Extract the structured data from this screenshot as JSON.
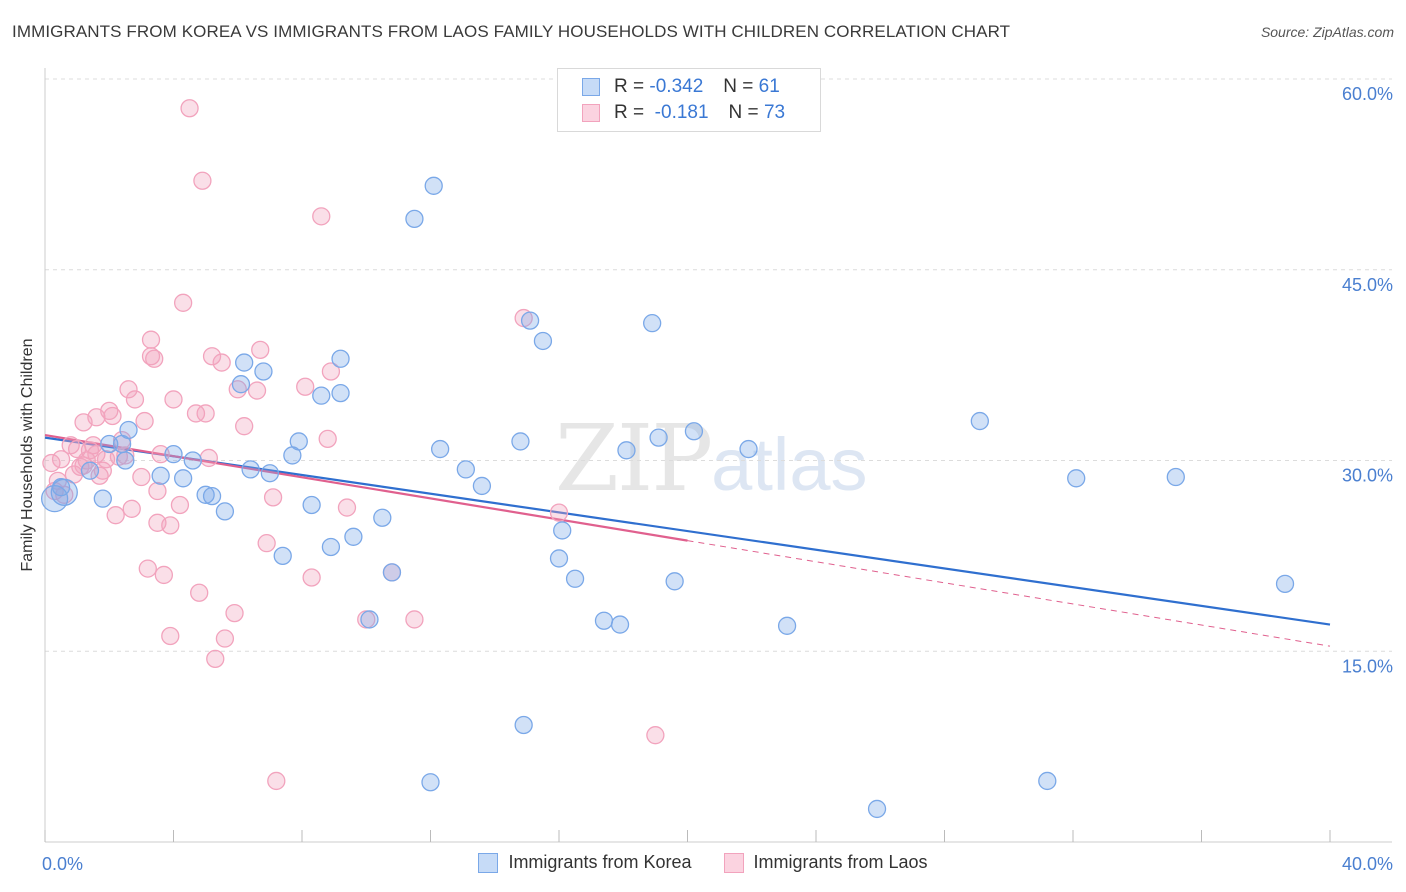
{
  "title": "IMMIGRANTS FROM KOREA VS IMMIGRANTS FROM LAOS FAMILY HOUSEHOLDS WITH CHILDREN CORRELATION CHART",
  "source": "Source: ZipAtlas.com",
  "watermark": {
    "zip": "ZIP",
    "atlas": "atlas"
  },
  "legend_top": {
    "rows": [
      {
        "r_label": "R =",
        "r_value": "-0.342",
        "n_label": "N =",
        "n_value": "61",
        "color": "#7aa8e8"
      },
      {
        "r_label": "R =",
        "r_value": "-0.181",
        "n_label": "N =",
        "n_value": "73",
        "color": "#f2a3bd"
      }
    ]
  },
  "chart_data": {
    "type": "scatter",
    "title": "IMMIGRANTS FROM KOREA VS IMMIGRANTS FROM LAOS FAMILY HOUSEHOLDS WITH CHILDREN CORRELATION CHART",
    "xlabel": "",
    "ylabel": "Family Households with Children",
    "xlim": [
      0,
      40
    ],
    "ylim": [
      0,
      60
    ],
    "x_tick_labels": [
      "0.0%",
      "40.0%"
    ],
    "y_tick_labels": [
      "15.0%",
      "30.0%",
      "45.0%",
      "60.0%"
    ],
    "y_ticks": [
      15,
      30,
      45,
      60
    ],
    "grid": "horizontal dashed",
    "legend_position": "bottom",
    "series": [
      {
        "name": "Immigrants from Korea",
        "color": "#7aa8e8",
        "line_color": "#2f6fcf",
        "trend": {
          "x": [
            0,
            40
          ],
          "y": [
            31.8,
            17.1
          ]
        },
        "points": [
          [
            0.3,
            27.0
          ],
          [
            0.5,
            27.9
          ],
          [
            0.6,
            27.5
          ],
          [
            1.8,
            27.0
          ],
          [
            1.4,
            29.2
          ],
          [
            2.0,
            31.3
          ],
          [
            2.4,
            31.3
          ],
          [
            2.5,
            30.0
          ],
          [
            2.6,
            32.4
          ],
          [
            3.6,
            28.8
          ],
          [
            4.0,
            30.5
          ],
          [
            4.3,
            28.6
          ],
          [
            4.6,
            30.0
          ],
          [
            5.0,
            27.3
          ],
          [
            5.2,
            27.2
          ],
          [
            5.6,
            26.0
          ],
          [
            6.1,
            36.0
          ],
          [
            6.2,
            37.7
          ],
          [
            6.4,
            29.3
          ],
          [
            6.8,
            37.0
          ],
          [
            7.0,
            29.0
          ],
          [
            7.4,
            22.5
          ],
          [
            7.7,
            30.4
          ],
          [
            7.9,
            31.5
          ],
          [
            8.3,
            26.5
          ],
          [
            8.6,
            35.1
          ],
          [
            8.9,
            23.2
          ],
          [
            9.2,
            38.0
          ],
          [
            9.2,
            35.3
          ],
          [
            9.6,
            24.0
          ],
          [
            10.1,
            17.5
          ],
          [
            10.5,
            25.5
          ],
          [
            10.8,
            21.2
          ],
          [
            11.5,
            49.0
          ],
          [
            12.1,
            51.6
          ],
          [
            12.3,
            30.9
          ],
          [
            13.1,
            29.3
          ],
          [
            13.6,
            28.0
          ],
          [
            14.8,
            31.5
          ],
          [
            15.1,
            41.0
          ],
          [
            15.5,
            39.4
          ],
          [
            16.0,
            22.3
          ],
          [
            16.1,
            24.5
          ],
          [
            16.5,
            20.7
          ],
          [
            17.4,
            17.4
          ],
          [
            17.9,
            17.1
          ],
          [
            18.1,
            30.8
          ],
          [
            18.9,
            40.8
          ],
          [
            19.1,
            31.8
          ],
          [
            19.6,
            20.5
          ],
          [
            20.2,
            32.3
          ],
          [
            21.9,
            30.9
          ],
          [
            23.1,
            17.0
          ],
          [
            29.1,
            33.1
          ],
          [
            32.1,
            28.6
          ],
          [
            35.2,
            28.7
          ],
          [
            38.6,
            20.3
          ],
          [
            12.0,
            4.7
          ],
          [
            14.9,
            9.2
          ],
          [
            25.9,
            2.6
          ],
          [
            31.2,
            4.8
          ]
        ]
      },
      {
        "name": "Immigrants from Laos",
        "color": "#f2a3bd",
        "line_color": "#e0608e",
        "trend": {
          "x": [
            0,
            20
          ],
          "y": [
            32.0,
            23.7
          ]
        },
        "trend_extension": {
          "x": [
            20,
            40
          ],
          "y": [
            23.7,
            15.4
          ]
        },
        "points": [
          [
            0.2,
            29.8
          ],
          [
            0.3,
            27.6
          ],
          [
            0.4,
            28.4
          ],
          [
            0.5,
            30.1
          ],
          [
            0.6,
            27.3
          ],
          [
            0.8,
            31.2
          ],
          [
            1.0,
            30.9
          ],
          [
            1.1,
            29.5
          ],
          [
            1.2,
            33.0
          ],
          [
            1.3,
            30.0
          ],
          [
            1.4,
            30.8
          ],
          [
            1.6,
            30.5
          ],
          [
            1.6,
            33.4
          ],
          [
            1.7,
            28.8
          ],
          [
            1.8,
            29.2
          ],
          [
            1.9,
            30.1
          ],
          [
            2.0,
            33.9
          ],
          [
            2.1,
            33.5
          ],
          [
            2.2,
            25.7
          ],
          [
            2.3,
            30.3
          ],
          [
            2.4,
            31.6
          ],
          [
            2.6,
            35.6
          ],
          [
            2.7,
            26.2
          ],
          [
            2.8,
            34.8
          ],
          [
            3.0,
            28.7
          ],
          [
            3.1,
            33.1
          ],
          [
            3.2,
            21.5
          ],
          [
            3.3,
            38.2
          ],
          [
            3.3,
            39.5
          ],
          [
            3.4,
            38.0
          ],
          [
            3.5,
            27.6
          ],
          [
            3.5,
            25.1
          ],
          [
            3.6,
            30.5
          ],
          [
            3.7,
            21.0
          ],
          [
            3.9,
            24.9
          ],
          [
            3.9,
            16.2
          ],
          [
            4.0,
            34.8
          ],
          [
            4.2,
            26.5
          ],
          [
            4.3,
            42.4
          ],
          [
            4.5,
            57.7
          ],
          [
            4.7,
            33.7
          ],
          [
            4.8,
            19.6
          ],
          [
            4.9,
            52.0
          ],
          [
            5.0,
            33.7
          ],
          [
            5.1,
            30.2
          ],
          [
            5.2,
            38.2
          ],
          [
            5.3,
            14.4
          ],
          [
            5.5,
            37.7
          ],
          [
            5.6,
            16.0
          ],
          [
            5.9,
            18.0
          ],
          [
            6.0,
            35.6
          ],
          [
            6.2,
            32.7
          ],
          [
            6.6,
            35.5
          ],
          [
            6.7,
            38.7
          ],
          [
            6.9,
            23.5
          ],
          [
            7.1,
            27.1
          ],
          [
            7.2,
            4.8
          ],
          [
            8.1,
            35.8
          ],
          [
            8.3,
            20.8
          ],
          [
            8.6,
            49.2
          ],
          [
            8.8,
            31.7
          ],
          [
            8.9,
            37.0
          ],
          [
            9.4,
            26.3
          ],
          [
            10.0,
            17.5
          ],
          [
            10.8,
            21.2
          ],
          [
            11.5,
            17.5
          ],
          [
            14.9,
            41.2
          ],
          [
            16.0,
            25.9
          ],
          [
            19.0,
            8.4
          ],
          [
            1.5,
            31.2
          ],
          [
            2.5,
            30.4
          ],
          [
            0.9,
            28.9
          ],
          [
            1.2,
            29.6
          ]
        ]
      }
    ]
  }
}
